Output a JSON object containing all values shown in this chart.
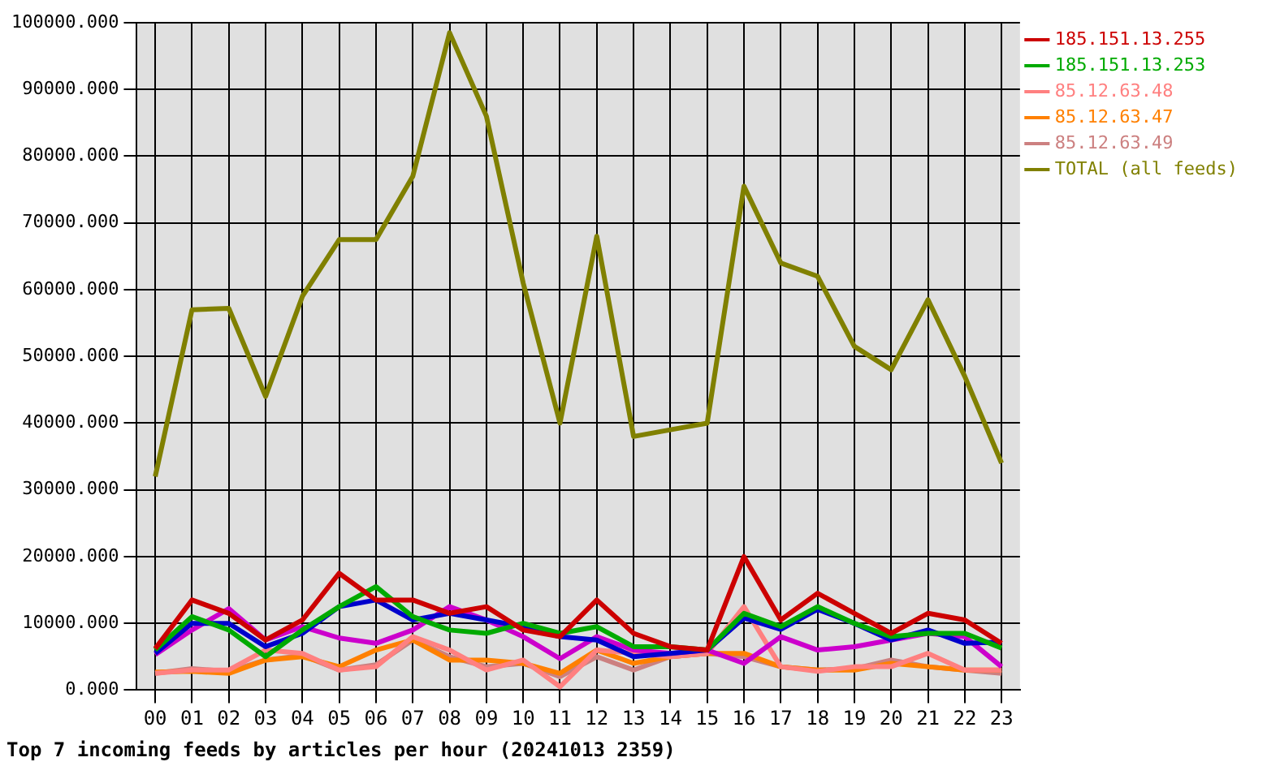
{
  "chart_data": {
    "type": "line",
    "title": "Top 7 incoming feeds by articles per hour (20241013 2359)",
    "categories": [
      "00",
      "01",
      "02",
      "03",
      "04",
      "05",
      "06",
      "07",
      "08",
      "09",
      "10",
      "11",
      "12",
      "13",
      "14",
      "15",
      "16",
      "17",
      "18",
      "19",
      "20",
      "21",
      "22",
      "23"
    ],
    "ylim": [
      0,
      100000
    ],
    "yticks": [
      {
        "value": 0,
        "label": "0.000"
      },
      {
        "value": 10000,
        "label": "10000.000"
      },
      {
        "value": 20000,
        "label": "20000.000"
      },
      {
        "value": 30000,
        "label": "30000.000"
      },
      {
        "value": 40000,
        "label": "40000.000"
      },
      {
        "value": 50000,
        "label": "50000.000"
      },
      {
        "value": 60000,
        "label": "60000.000"
      },
      {
        "value": 70000,
        "label": "70000.000"
      },
      {
        "value": 80000,
        "label": "80000.000"
      },
      {
        "value": 90000,
        "label": "90000.000"
      },
      {
        "value": 100000,
        "label": "100000.000"
      }
    ],
    "grid": true,
    "legend": "right",
    "marker": "none",
    "line_style": "solid",
    "series": [
      {
        "name": "185.151.13.255",
        "color": "#cc0000",
        "values": [
          6200,
          13500,
          11500,
          7500,
          10500,
          17500,
          13500,
          13500,
          11500,
          12500,
          9000,
          8000,
          13500,
          8500,
          6500,
          6000,
          20000,
          10500,
          14500,
          11500,
          8500,
          11500,
          10500,
          7000
        ]
      },
      {
        "name": "185.151.13.253",
        "color": "#00aa00",
        "values": [
          6000,
          11000,
          9000,
          5000,
          9000,
          12500,
          15500,
          11000,
          9000,
          8500,
          10000,
          8500,
          9500,
          6500,
          6500,
          6000,
          11500,
          9500,
          12500,
          10000,
          8000,
          8500,
          8500,
          6300
        ]
      },
      {
        "color": "#0000cc",
        "values": [
          5500,
          10000,
          10000,
          6500,
          8500,
          12500,
          13500,
          10500,
          11500,
          10500,
          9500,
          8000,
          7500,
          5000,
          5500,
          6000,
          10800,
          9100,
          12100,
          10000,
          7500,
          9000,
          7000,
          7200
        ]
      },
      {
        "color": "#cc00cc",
        "values": [
          5300,
          9000,
          12200,
          7500,
          9500,
          7800,
          7000,
          9000,
          12500,
          10500,
          8000,
          4700,
          8000,
          6000,
          5500,
          6000,
          4000,
          8000,
          6000,
          6500,
          7500,
          8500,
          8000,
          3500
        ]
      },
      {
        "name": "85.12.63.48",
        "color": "#ff8080",
        "values": [
          2500,
          3000,
          3000,
          6000,
          5500,
          3000,
          3500,
          8000,
          6000,
          3000,
          4500,
          500,
          6000,
          5500,
          5000,
          5500,
          12500,
          3500,
          2800,
          3500,
          3500,
          5500,
          3000,
          3000
        ]
      },
      {
        "name": "85.12.63.47",
        "color": "#ff8000",
        "values": [
          2700,
          2800,
          2500,
          4500,
          5000,
          3500,
          6000,
          7500,
          4500,
          4500,
          4000,
          2500,
          6000,
          4000,
          5000,
          5500,
          5500,
          3500,
          3000,
          3000,
          4000,
          3500,
          3000,
          3000
        ]
      },
      {
        "name": "85.12.63.49",
        "color": "#cc8080",
        "values": [
          2500,
          3200,
          2800,
          4500,
          5200,
          3000,
          3800,
          7500,
          5000,
          3500,
          4000,
          2000,
          5000,
          3000,
          5000,
          5500,
          5000,
          3500,
          3000,
          3200,
          4500,
          3500,
          3000,
          2500
        ]
      },
      {
        "name": "TOTAL (all feeds)",
        "color": "#808000",
        "values": [
          32000,
          57000,
          57200,
          44000,
          59000,
          67500,
          67500,
          77000,
          98500,
          86000,
          61000,
          40000,
          68000,
          38000,
          39000,
          40000,
          75500,
          64000,
          62000,
          51500,
          48000,
          58500,
          47000,
          34000
        ]
      }
    ]
  }
}
